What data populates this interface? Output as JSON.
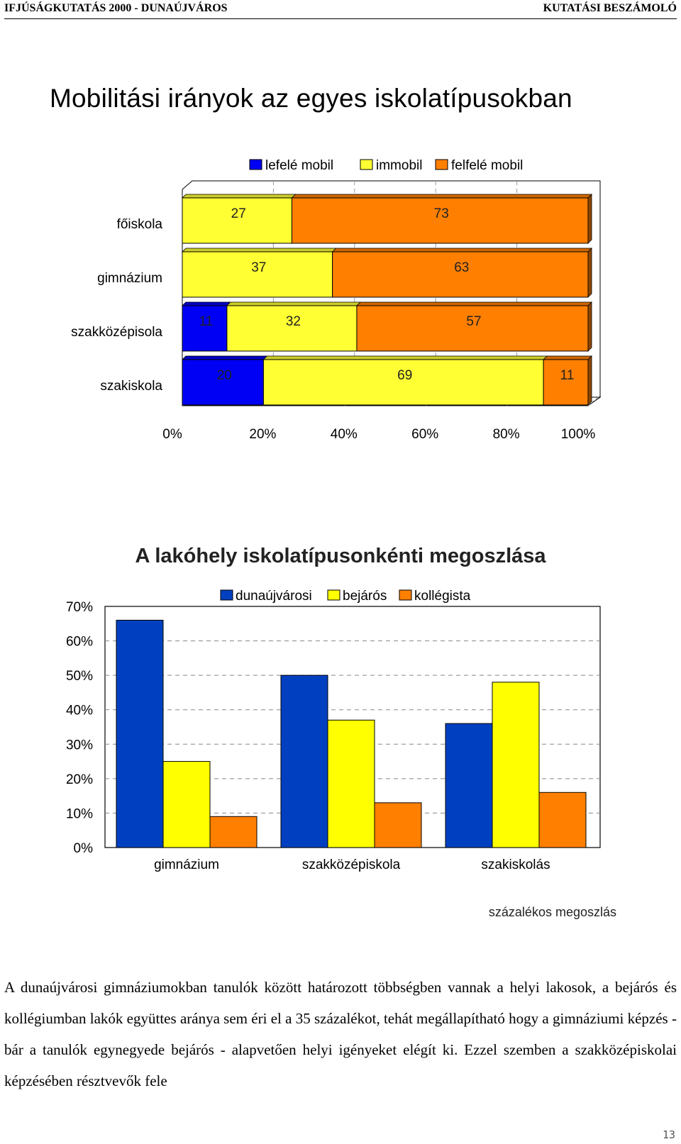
{
  "header": {
    "left": "IFJÚSÁGKUTATÁS 2000 - DUNAÚJVÁROS",
    "right": "KUTATÁSI BESZÁMOLÓ"
  },
  "chart_data": [
    {
      "type": "bar",
      "orientation": "horizontal",
      "stacked": "100%",
      "title": "Mobilitási irányok az egyes iskolatípusokban",
      "categories": [
        "főiskola",
        "gimnázium",
        "szakközépisola",
        "szakiskola"
      ],
      "series": [
        {
          "name": "lefelé mobil",
          "color": "#0000f5",
          "values": [
            0,
            0,
            11,
            20
          ]
        },
        {
          "name": "immobil",
          "color": "#ffff33",
          "values": [
            27,
            37,
            32,
            69
          ]
        },
        {
          "name": "felfelé mobil",
          "color": "#ff7f00",
          "values": [
            73,
            63,
            57,
            11
          ]
        }
      ],
      "x_ticks": [
        "0%",
        "20%",
        "40%",
        "60%",
        "80%",
        "100%"
      ],
      "xlim": [
        0,
        100
      ],
      "legend": "top"
    },
    {
      "type": "bar",
      "title": "A lakóhely iskolatípusonkénti megoszlása",
      "categories": [
        "gimnázium",
        "szakközépiskola",
        "szakiskolás"
      ],
      "series": [
        {
          "name": "dunaújvárosi",
          "color": "#0040c0",
          "values": [
            66,
            50,
            36
          ]
        },
        {
          "name": "bejárós",
          "color": "#ffff00",
          "values": [
            25,
            37,
            48
          ]
        },
        {
          "name": "kollégista",
          "color": "#ff7f00",
          "values": [
            9,
            13,
            16
          ]
        }
      ],
      "y_ticks": [
        "70%",
        "60%",
        "50%",
        "40%",
        "30%",
        "20%",
        "10%",
        "0%"
      ],
      "ylim": [
        0,
        70
      ],
      "grid": true,
      "legend": "top",
      "note": "százalékos megoszlás"
    }
  ],
  "paragraph": "A dunaújvárosi gimnáziumokban tanulók között határozott többségben vannak a helyi lakosok, a bejárós és kollégiumban lakók együttes aránya sem éri el a 35 százalékot, tehát megállapítható hogy a gimnáziumi képzés - bár a tanulók egynegyede bejárós - alapvetően helyi igényeket elégít ki. Ezzel szemben a szakközépiskolai képzésében résztvevők fele",
  "page_number": "13"
}
